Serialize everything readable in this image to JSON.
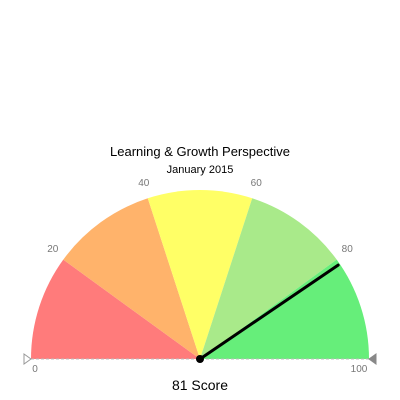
{
  "chart_data": {
    "type": "gauge",
    "title": "Learning & Growth Perspective",
    "subtitle": "January 2015",
    "min": 0,
    "max": 100,
    "value": 81,
    "value_label": "81 Score",
    "ticks": [
      0,
      20,
      40,
      60,
      80,
      100
    ],
    "tick_labels": [
      "0",
      "20",
      "40",
      "60",
      "80",
      "100"
    ],
    "bands": [
      {
        "from": 0,
        "to": 20,
        "color": "#ff7b7b"
      },
      {
        "from": 20,
        "to": 40,
        "color": "#ffb36b"
      },
      {
        "from": 40,
        "to": 60,
        "color": "#ffff66"
      },
      {
        "from": 60,
        "to": 80,
        "color": "#a9ea8a"
      },
      {
        "from": 80,
        "to": 100,
        "color": "#66ee7a"
      }
    ],
    "needle_color": "#000000"
  }
}
